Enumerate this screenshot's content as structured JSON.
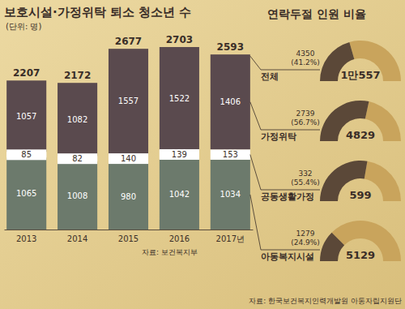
{
  "chart_data": [
    {
      "type": "bar",
      "stacked": true,
      "title": "보호시설·가정위탁 퇴소 청소년 수",
      "subtitle": "(단위: 명)",
      "source": "자료: 보건복지부",
      "categories": [
        "2013",
        "2014",
        "2015",
        "2016",
        "2017년"
      ],
      "series": [
        {
          "name": "아동복지시설",
          "color": "#6c7a6c",
          "values": [
            1065,
            1008,
            980,
            1042,
            1034
          ]
        },
        {
          "name": "공동생활가정",
          "color": "#ffffff",
          "values": [
            85,
            82,
            140,
            139,
            153
          ]
        },
        {
          "name": "가정위탁",
          "color": "#5a4a4e",
          "values": [
            1057,
            1082,
            1557,
            1522,
            1406
          ]
        }
      ],
      "total_label": "전체",
      "totals": [
        2207,
        2172,
        2677,
        2703,
        2593
      ],
      "data_labels": true,
      "tick_labels": "x"
    },
    {
      "type": "pie",
      "title": "연락두절 인원 비율",
      "source": "자료: 한국보건복지인력개발원 아동자립지원단",
      "values": [
        4350,
        2739,
        332,
        1279
      ],
      "percent_labels": [
        "(41.2%)",
        "(56.7%)",
        "(55.4%)",
        "(24.9%)"
      ],
      "totals": [
        10557,
        4829,
        599,
        5129
      ],
      "total_labels": [
        "1만557",
        "4829",
        "599",
        "5129"
      ],
      "color": "#5b4838",
      "data_labels": true
    }
  ]
}
